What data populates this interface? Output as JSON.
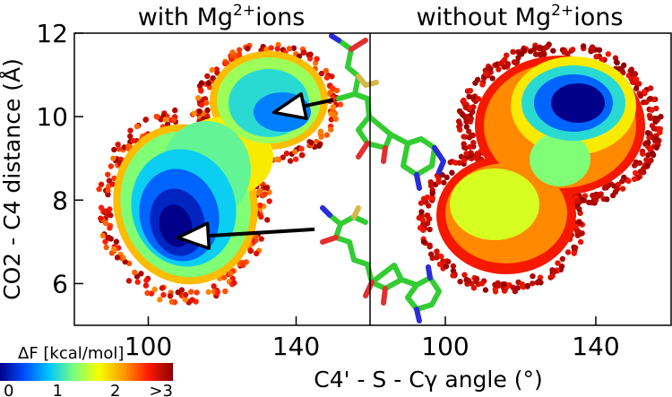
{
  "chart_data": {
    "type": "heatmap",
    "ylabel": "CO2 - C4 distance (Å)",
    "xlabel": "C4' - S - Cγ angle (°)",
    "ylim": [
      5,
      12
    ],
    "yticks": [
      "6",
      "8",
      "10",
      "12"
    ],
    "colorbar": {
      "label": "ΔF [kcal/mol]",
      "ticks": [
        "0",
        "1",
        "2",
        ">3"
      ],
      "range": [
        0,
        3
      ],
      "colors": [
        "#00008b",
        "#0050ff",
        "#00c8ff",
        "#7cff7a",
        "#f7ff00",
        "#ff9a00",
        "#ff1a00",
        "#8b0000"
      ]
    },
    "panels": [
      {
        "title": "with Mg2+ions",
        "title_base": "with Mg",
        "title_sup": "2+",
        "title_rest": "ions",
        "xlim": [
          80,
          160
        ],
        "xticks": [
          "100",
          "140"
        ],
        "minima": [
          {
            "x": 104,
            "y": 7.4,
            "depth": 0.0
          },
          {
            "x": 138,
            "y": 10.1,
            "depth": 0.6
          }
        ],
        "arrows": [
          {
            "from": [
              145,
              7.3
            ],
            "to": [
              108,
              7.1
            ]
          },
          {
            "from": [
              150,
              10.4
            ],
            "to": [
              134,
              10.1
            ]
          }
        ]
      },
      {
        "title": "without Mg2+ions",
        "title_base": "without Mg",
        "title_sup": "2+",
        "title_rest": "ions",
        "xlim": [
          80,
          160
        ],
        "xticks": [
          "100",
          "140"
        ],
        "minima": [
          {
            "x": 133,
            "y": 10.3,
            "depth": 0.0
          },
          {
            "x": 128,
            "y": 8.3,
            "depth": 1.1
          },
          {
            "x": 104,
            "y": 8.0,
            "depth": 1.2
          }
        ],
        "arrows": []
      }
    ]
  }
}
